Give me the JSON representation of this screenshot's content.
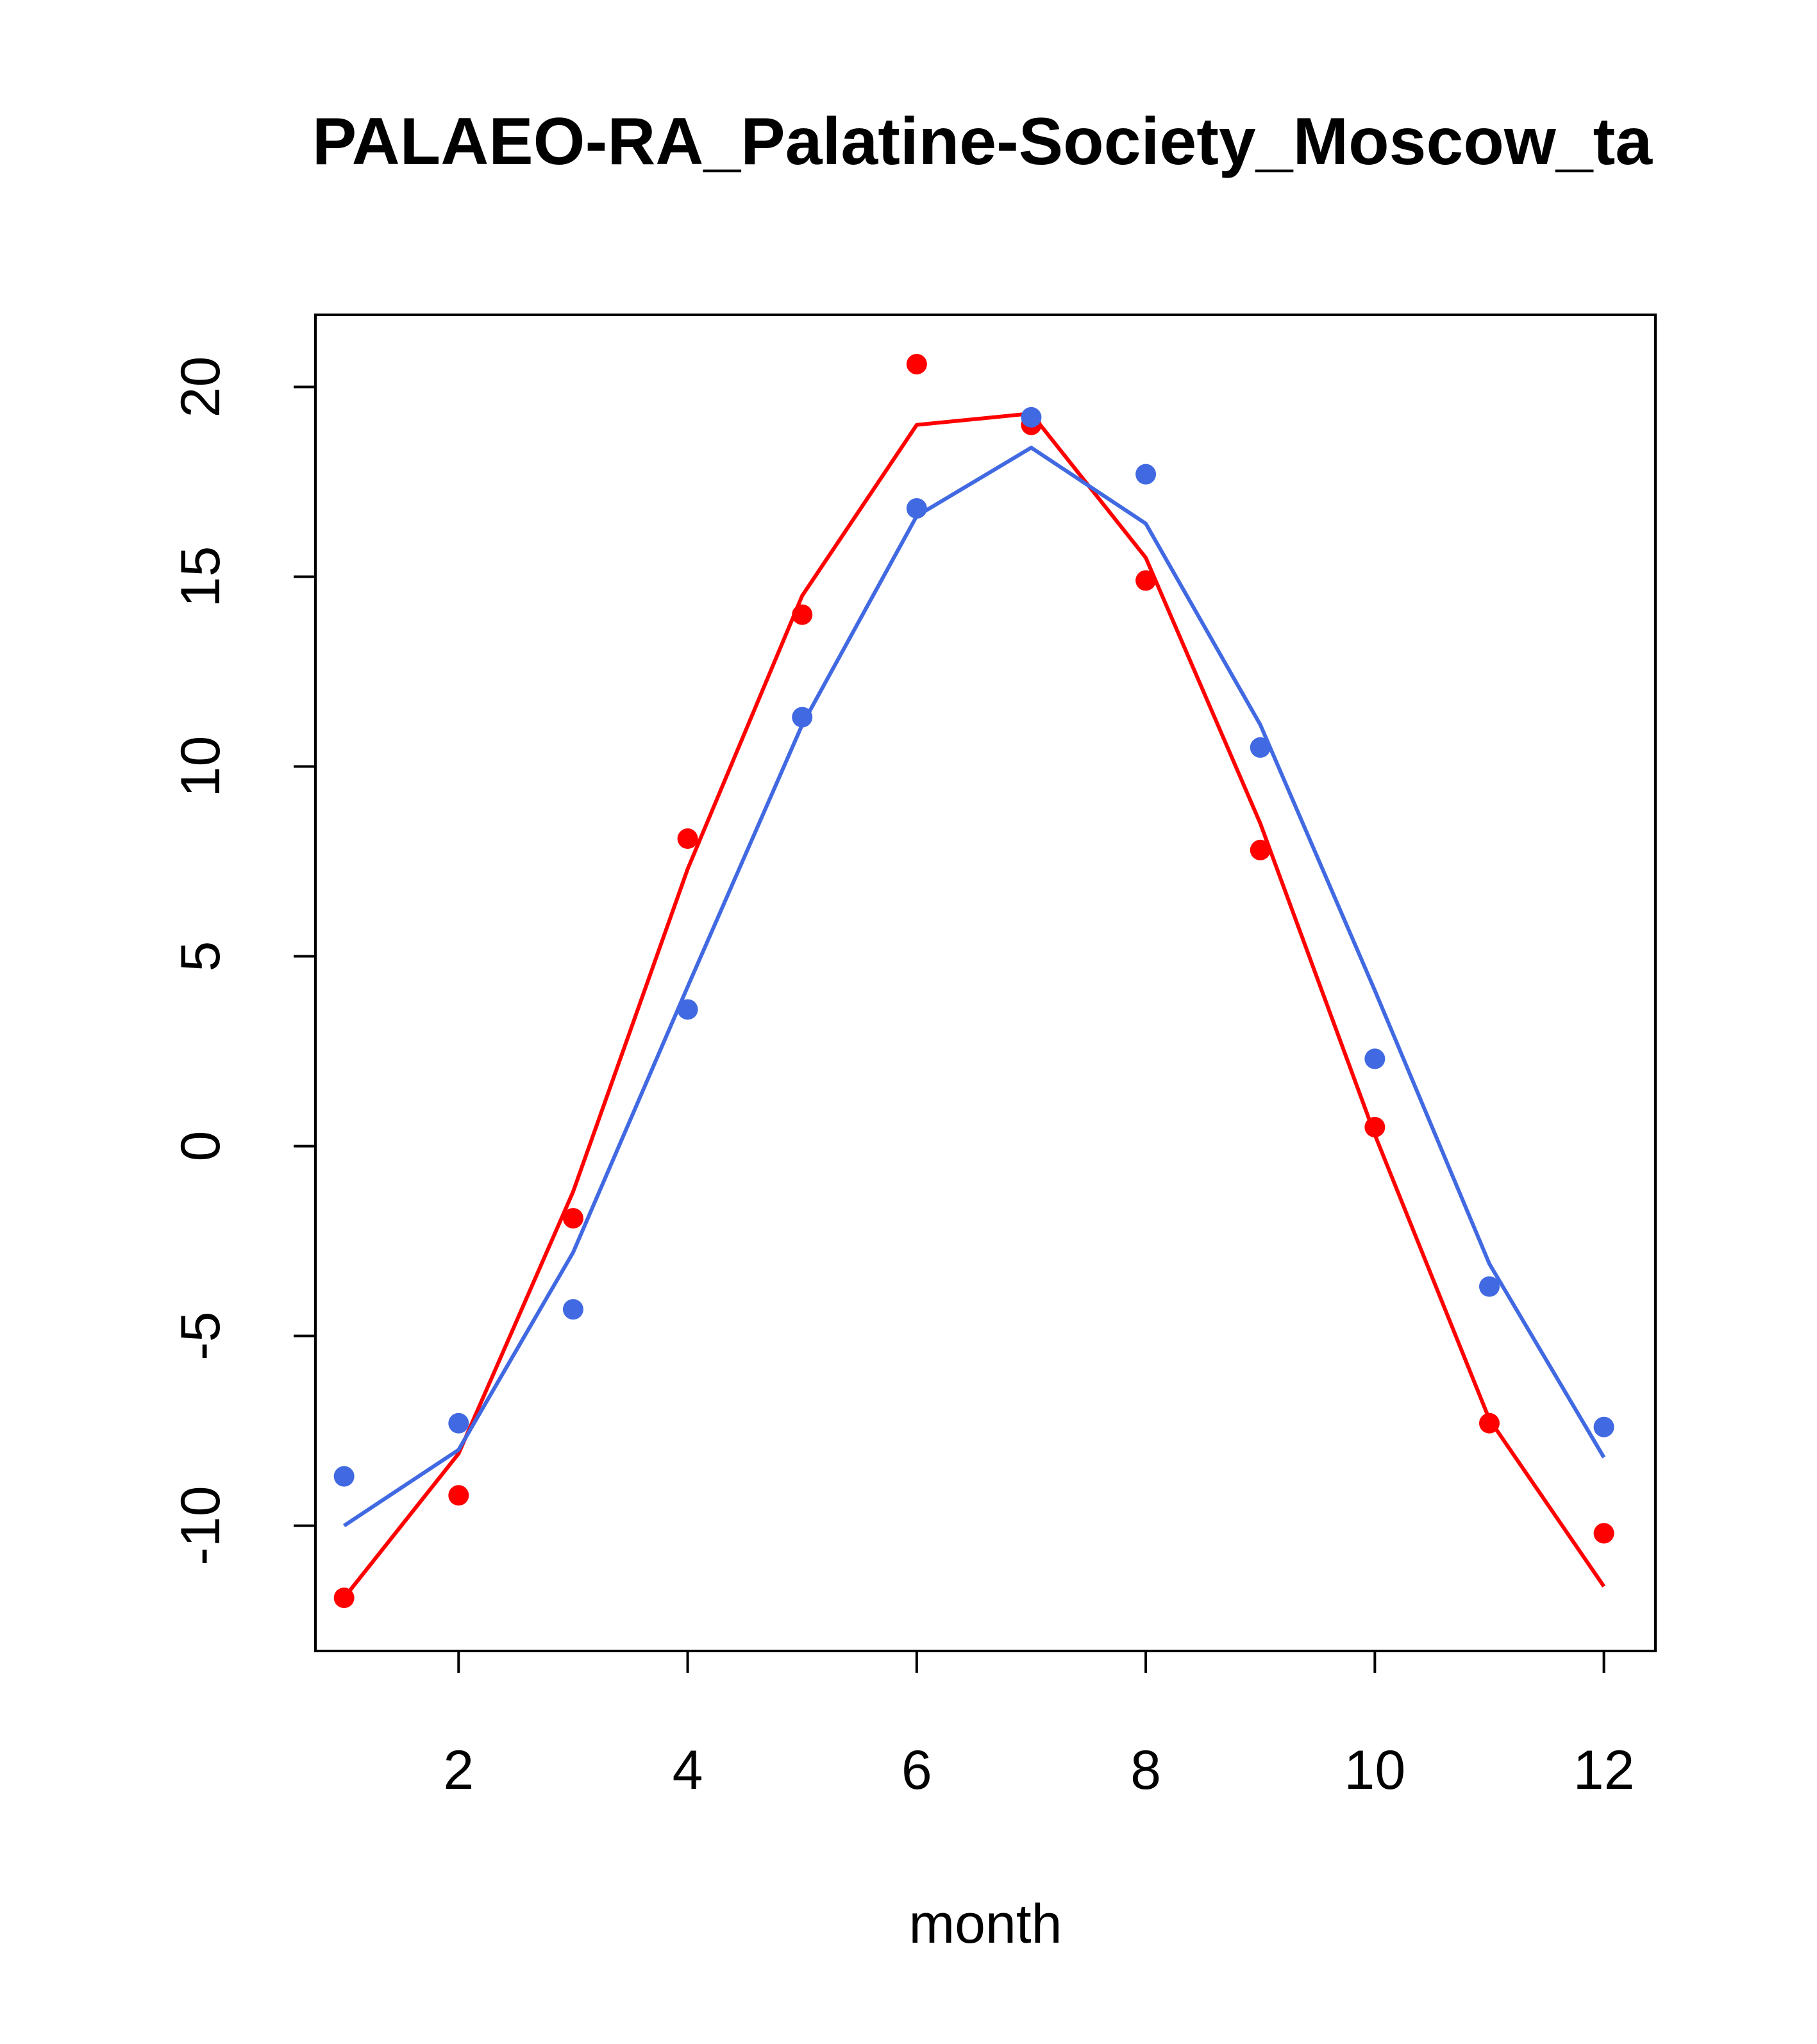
{
  "chart_data": {
    "type": "scatter",
    "title": "PALAEO-RA_Palatine-Society_Moscow_ta",
    "xlabel": "month",
    "ylabel": "",
    "xlim": [
      0.75,
      12.45
    ],
    "ylim": [
      -13.3,
      21.9
    ],
    "x_ticks": [
      "2",
      "4",
      "6",
      "8",
      "10",
      "12"
    ],
    "y_ticks": [
      "-10",
      "-5",
      "0",
      "5",
      "10",
      "15",
      "20"
    ],
    "grid": false,
    "x": [
      1,
      2,
      3,
      4,
      5,
      6,
      7,
      8,
      9,
      10,
      11,
      12
    ],
    "series": [
      {
        "color": "#ff0000",
        "points": [
          -11.9,
          -9.2,
          -1.9,
          8.1,
          14.0,
          20.6,
          19.0,
          14.9,
          7.8,
          0.5,
          -7.3,
          -10.2
        ],
        "line": [
          -11.9,
          -8.1,
          -1.2,
          7.3,
          14.5,
          19.0,
          19.3,
          15.5,
          8.5,
          0.3,
          -7.2,
          -11.6
        ]
      },
      {
        "color": "#4169e1",
        "points": [
          -8.7,
          -7.3,
          -4.3,
          3.6,
          11.3,
          16.8,
          19.2,
          17.7,
          10.5,
          2.3,
          -3.7,
          -7.4
        ],
        "line": [
          -10.0,
          -8.0,
          -2.8,
          4.2,
          11.1,
          16.6,
          18.4,
          16.4,
          11.1,
          4.1,
          -3.1,
          -8.2
        ]
      }
    ]
  }
}
